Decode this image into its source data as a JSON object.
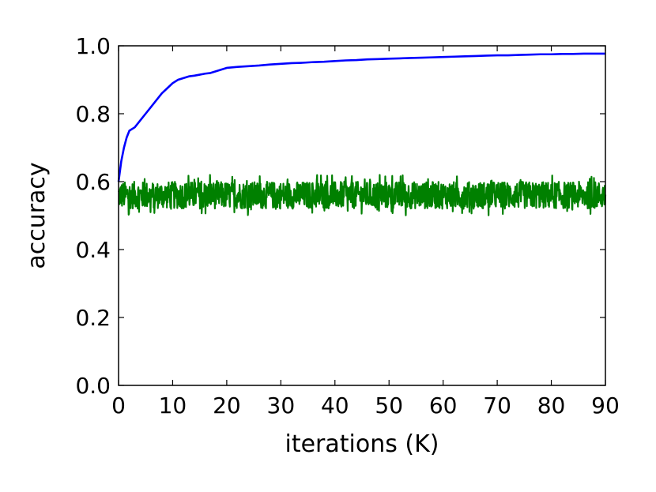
{
  "chart_data": {
    "type": "line",
    "title": "",
    "xlabel": "iterations (K)",
    "ylabel": "accuracy",
    "xlim": [
      0,
      90
    ],
    "ylim": [
      0.0,
      1.0
    ],
    "grid": false,
    "legend": "none",
    "x_ticks": [
      "0",
      "10",
      "20",
      "30",
      "40",
      "50",
      "60",
      "70",
      "80",
      "90"
    ],
    "y_ticks": [
      "0.0",
      "0.2",
      "0.4",
      "0.6",
      "0.8",
      "1.0"
    ],
    "series": [
      {
        "color": "#0000ff",
        "x": [
          0.0,
          0.5,
          1,
          1.5,
          2,
          3,
          4,
          5,
          6,
          7,
          8,
          9,
          10,
          11,
          12,
          13,
          14,
          15,
          16,
          17,
          18,
          19,
          20,
          22,
          24,
          26,
          28,
          30,
          32,
          34,
          36,
          38,
          40,
          42,
          44,
          46,
          48,
          50,
          52,
          54,
          56,
          58,
          60,
          62,
          64,
          66,
          68,
          70,
          72,
          74,
          76,
          78,
          80,
          82,
          84,
          86,
          88,
          90
        ],
        "y": [
          0.6,
          0.66,
          0.7,
          0.73,
          0.75,
          0.76,
          0.78,
          0.8,
          0.82,
          0.84,
          0.86,
          0.875,
          0.89,
          0.9,
          0.905,
          0.91,
          0.912,
          0.915,
          0.918,
          0.92,
          0.925,
          0.93,
          0.935,
          0.938,
          0.94,
          0.942,
          0.945,
          0.947,
          0.949,
          0.95,
          0.952,
          0.953,
          0.955,
          0.957,
          0.958,
          0.96,
          0.961,
          0.962,
          0.963,
          0.964,
          0.965,
          0.966,
          0.967,
          0.968,
          0.969,
          0.97,
          0.971,
          0.972,
          0.972,
          0.973,
          0.974,
          0.975,
          0.975,
          0.976,
          0.976,
          0.977,
          0.977,
          0.977
        ]
      },
      {
        "color": "#008000",
        "x_range": [
          0,
          90
        ],
        "center": 0.56,
        "band": [
          0.52,
          0.6
        ],
        "extremes": [
          0.5,
          0.62
        ]
      }
    ]
  }
}
